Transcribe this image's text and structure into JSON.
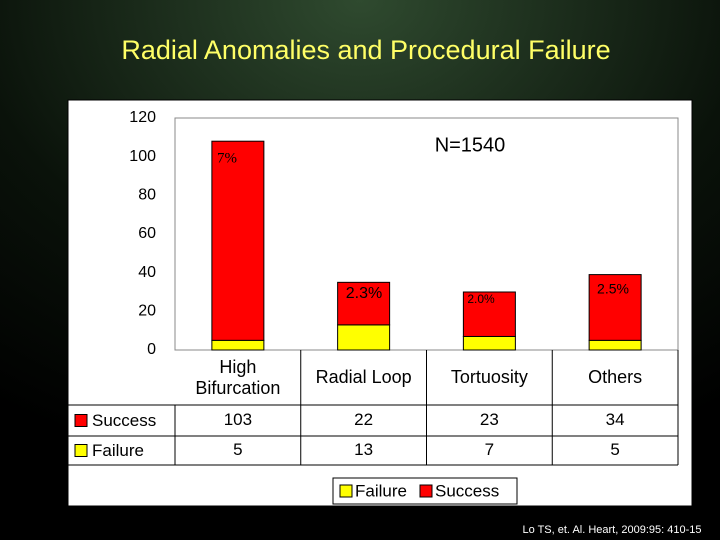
{
  "chart_data": {
    "type": "bar",
    "stacked": true,
    "title": "Radial Anomalies and Procedural Failure",
    "categories": [
      "High Bifurcation",
      "Radial Loop",
      "Tortuosity",
      "Others"
    ],
    "series": [
      {
        "name": "Failure",
        "color": "#ffff00",
        "values": [
          5,
          13,
          7,
          5
        ]
      },
      {
        "name": "Success",
        "color": "#ff0000",
        "values": [
          103,
          22,
          23,
          34
        ]
      }
    ],
    "ylim": [
      0,
      120
    ],
    "yticks": [
      0,
      20,
      40,
      60,
      80,
      100,
      120
    ],
    "grid": false,
    "annotations": [
      "N=1540",
      "7%",
      "2.3%",
      "2.0%",
      "2.5%"
    ],
    "source": "Lo TS, et. Al. Heart, 2009:95: 410-15"
  }
}
